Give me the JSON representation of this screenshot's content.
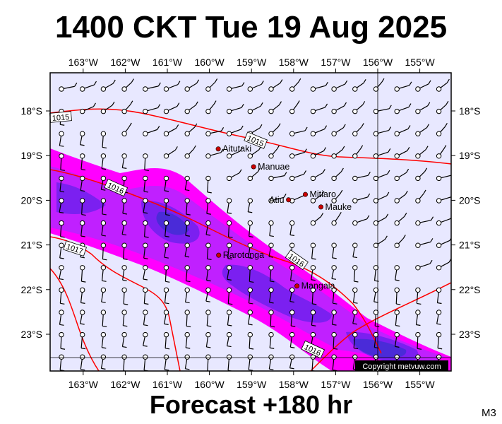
{
  "title": "1400 CKT Tue 19 Aug 2025",
  "footer": "Forecast +180 hr",
  "code": "M3",
  "copyright": "Copyright metvuw.com",
  "lon_labels": [
    "163°W",
    "162°W",
    "161°W",
    "160°W",
    "159°W",
    "158°W",
    "157°W",
    "156°W",
    "155°W"
  ],
  "lat_labels": [
    "18°S",
    "19°S",
    "20°S",
    "21°S",
    "22°S",
    "23°S"
  ],
  "places": [
    {
      "name": "Aitutaki",
      "lon": -159.79,
      "lat": -18.85
    },
    {
      "name": "Manuae",
      "lon": -158.95,
      "lat": -19.25
    },
    {
      "name": "Atiu",
      "lon": -158.12,
      "lat": -19.99
    },
    {
      "name": "Mitiaro",
      "lon": -157.72,
      "lat": -19.87
    },
    {
      "name": "Mauke",
      "lon": -157.35,
      "lat": -20.15
    },
    {
      "name": "Rarotonga",
      "lon": -159.78,
      "lat": -21.23
    },
    {
      "name": "Mangaia",
      "lon": -157.92,
      "lat": -21.92
    }
  ],
  "isobars": [
    "1015",
    "1015",
    "1016",
    "1017",
    "1016",
    "1016"
  ],
  "colors": {
    "background": "#e8e8ff",
    "rain_light": "#ff00ff",
    "rain_medium": "#c020ff",
    "rain_heavy": "#7b20f0",
    "rain_intense": "#4a2bd8",
    "isobar": "#ff0000",
    "city": "#cc0000"
  }
}
